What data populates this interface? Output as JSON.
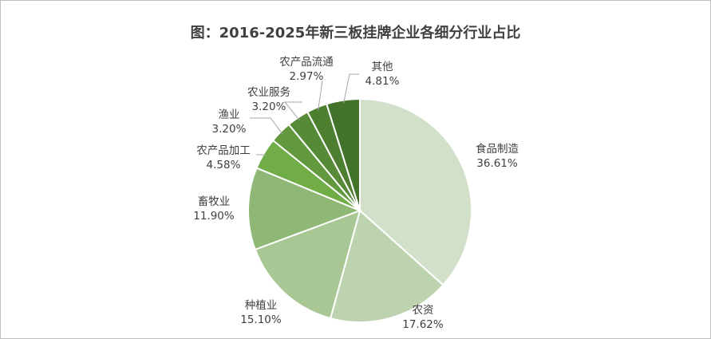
{
  "chart_data": {
    "type": "pie",
    "title": "图：2016-2025年新三板挂牌企业各细分行业占比",
    "slices": [
      {
        "name": "食品制造",
        "value": 36.61,
        "label": "36.61%",
        "color": "#d2dfc9"
      },
      {
        "name": "农资",
        "value": 17.62,
        "label": "17.62%",
        "color": "#bdd2ae"
      },
      {
        "name": "种植业",
        "value": 15.1,
        "label": "15.10%",
        "color": "#a8c794"
      },
      {
        "name": "畜牧业",
        "value": 11.9,
        "label": "11.90%",
        "color": "#8fb876"
      },
      {
        "name": "农产品加工",
        "value": 4.58,
        "label": "4.58%",
        "color": "#70ad47"
      },
      {
        "name": "渔业",
        "value": 3.2,
        "label": "3.20%",
        "color": "#62983e"
      },
      {
        "name": "农业服务",
        "value": 3.2,
        "label": "3.20%",
        "color": "#578a37"
      },
      {
        "name": "农产品流通",
        "value": 2.97,
        "label": "2.97%",
        "color": "#4e7f31"
      },
      {
        "name": "其他",
        "value": 4.81,
        "label": "4.81%",
        "color": "#43732b"
      }
    ],
    "start_angle": "12 o'clock",
    "direction": "clockwise",
    "legend": "none",
    "data_labels": "outside with leader lines"
  }
}
